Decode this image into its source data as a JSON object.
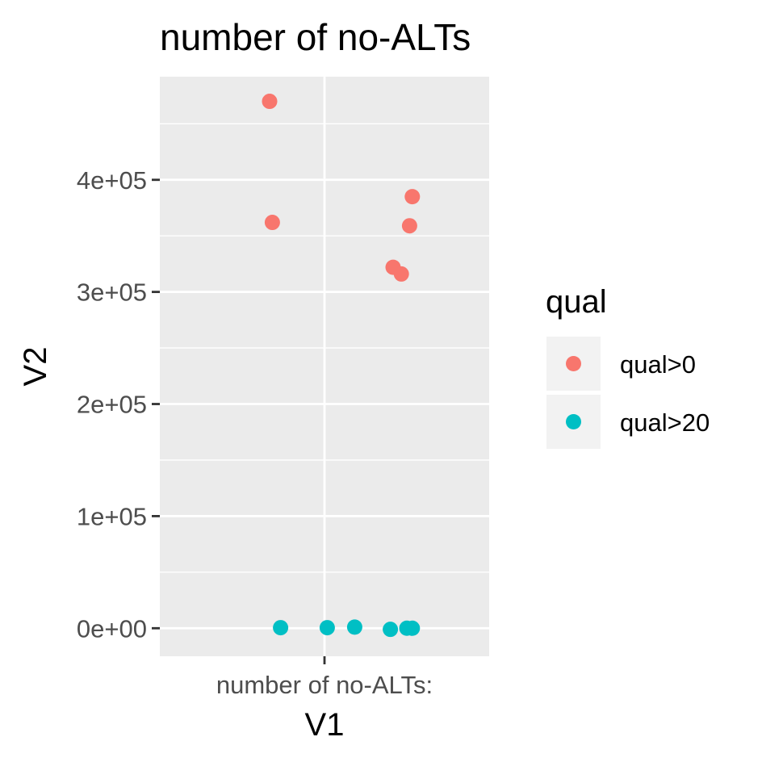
{
  "chart_data": {
    "type": "scatter",
    "title": "number of no-ALTs",
    "xlabel": "V1",
    "ylabel": "V2",
    "x_categories": [
      "number of no-ALTs:"
    ],
    "ylim": [
      -25000,
      492000
    ],
    "y_ticks": [
      0,
      100000,
      200000,
      300000,
      400000
    ],
    "y_tick_labels": [
      "0e+00",
      "1e+05",
      "2e+05",
      "3e+05",
      "4e+05"
    ],
    "grid": true,
    "legend": {
      "title": "qual",
      "placement": "right",
      "entries": [
        {
          "label": "qual>0",
          "color": "#F8766D"
        },
        {
          "label": "qual>20",
          "color": "#00BFC4"
        }
      ]
    },
    "series": [
      {
        "name": "qual>0",
        "color": "#F8766D",
        "points": [
          {
            "x": 0.8,
            "y": 470000
          },
          {
            "x": 0.81,
            "y": 362000
          },
          {
            "x": 1.32,
            "y": 385000
          },
          {
            "x": 1.31,
            "y": 359000
          },
          {
            "x": 1.25,
            "y": 322000
          },
          {
            "x": 1.28,
            "y": 316000
          }
        ]
      },
      {
        "name": "qual>20",
        "color": "#00BFC4",
        "points": [
          {
            "x": 0.84,
            "y": 500
          },
          {
            "x": 1.01,
            "y": 500
          },
          {
            "x": 1.11,
            "y": 1000
          },
          {
            "x": 1.24,
            "y": -1000
          },
          {
            "x": 1.3,
            "y": 0
          },
          {
            "x": 1.32,
            "y": 0
          }
        ]
      }
    ]
  }
}
